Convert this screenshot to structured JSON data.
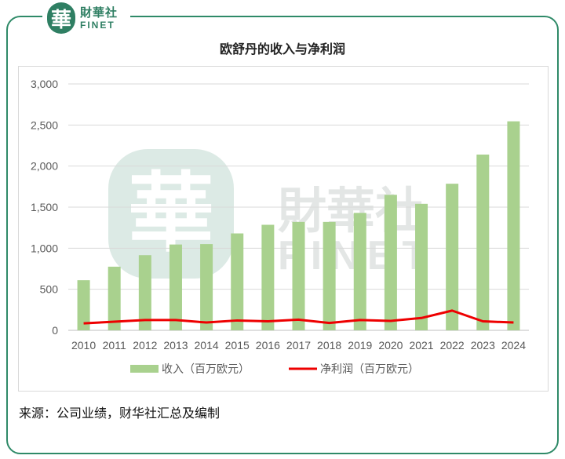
{
  "brand": {
    "mark": "華",
    "name_cn": "財華社",
    "name_en": "FINET"
  },
  "watermark": {
    "cn": "財華社",
    "en": "FINET"
  },
  "chart_data": {
    "type": "bar+line",
    "title": "欧舒丹的收入与净利润",
    "categories": [
      "2010",
      "2011",
      "2012",
      "2013",
      "2014",
      "2015",
      "2016",
      "2017",
      "2018",
      "2019",
      "2020",
      "2021",
      "2022",
      "2023",
      "2024"
    ],
    "series": [
      {
        "name": "收入（百万欧元）",
        "type": "bar",
        "color": "#a9d18e",
        "values": [
          610,
          775,
          915,
          1045,
          1050,
          1180,
          1285,
          1320,
          1320,
          1430,
          1650,
          1540,
          1785,
          2140,
          2545
        ]
      },
      {
        "name": "净利润（百万欧元）",
        "type": "line",
        "color": "#ee0000",
        "values": [
          85,
          105,
          125,
          125,
          95,
          120,
          110,
          130,
          90,
          125,
          115,
          150,
          240,
          110,
          95
        ]
      }
    ],
    "ylim": [
      0,
      3000
    ],
    "yticks": [
      0,
      500,
      1000,
      1500,
      2000,
      2500,
      3000
    ],
    "ytick_labels": [
      "0",
      "500",
      "1,000",
      "1,500",
      "2,000",
      "2,500",
      "3,000"
    ],
    "grid": true,
    "legend": "bottom"
  },
  "footer": {
    "source": "来源：公司业绩，财华社汇总及编制"
  }
}
